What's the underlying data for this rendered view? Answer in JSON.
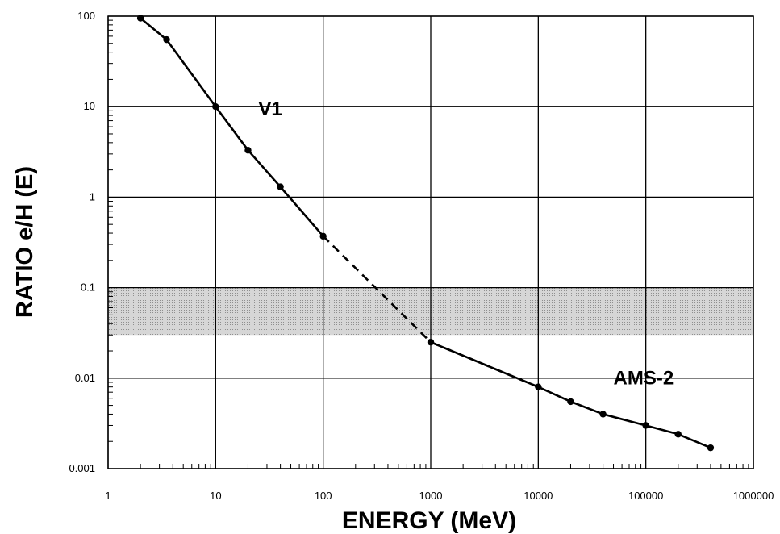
{
  "chart_data": {
    "type": "line",
    "xlabel": "ENERGY (MeV)",
    "ylabel": "RATIO e/H (E)",
    "x_scale": "log",
    "y_scale": "log",
    "xlim": [
      1,
      1000000
    ],
    "ylim": [
      0.001,
      100
    ],
    "x_ticks": [
      "1",
      "10",
      "100",
      "1000",
      "10000",
      "100000",
      "1000000"
    ],
    "y_ticks": [
      "0.001",
      "0.01",
      "0.1",
      "1",
      "10",
      "100"
    ],
    "grid": true,
    "shaded_band": {
      "y_from": 0.03,
      "y_to": 0.1,
      "color": "#c8c8c8"
    },
    "series": [
      {
        "name": "V1",
        "style": "solid",
        "markers": true,
        "x": [
          2,
          3.5,
          10,
          20,
          40,
          100
        ],
        "y": [
          95,
          55,
          10,
          3.3,
          1.3,
          0.37
        ]
      },
      {
        "style": "dashed",
        "markers": false,
        "x": [
          100,
          1000,
          10000
        ],
        "y": [
          0.37,
          0.025,
          0.008
        ]
      },
      {
        "name": "AMS-2",
        "style": "solid",
        "markers": true,
        "x": [
          1000,
          10000,
          20000,
          40000,
          100000,
          200000,
          400000
        ],
        "y": [
          0.025,
          0.008,
          0.0055,
          0.004,
          0.003,
          0.0024,
          0.0017
        ]
      }
    ],
    "annotations": [
      {
        "text": "V1",
        "x": 25,
        "y": 8
      },
      {
        "text": "AMS-2",
        "x": 50000,
        "y": 0.0085
      }
    ],
    "line_color": "#000000"
  }
}
